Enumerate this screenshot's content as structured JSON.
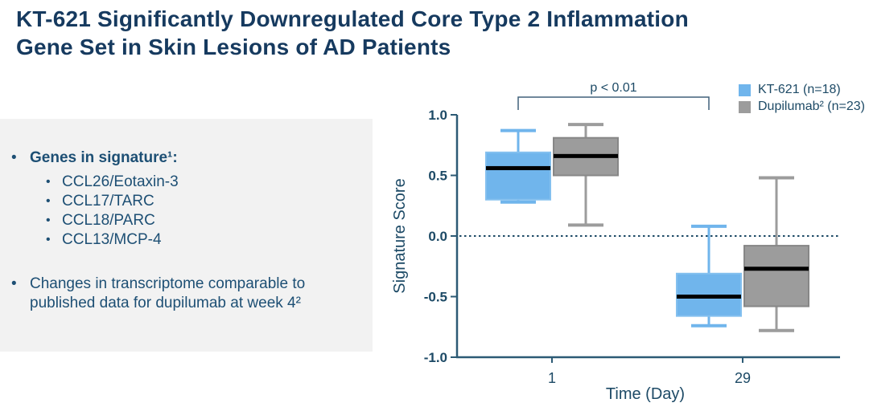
{
  "slide": {
    "title_line1": "KT-621 Significantly Downregulated Core Type 2 Inflammation",
    "title_line2": "Gene Set in Skin Lesions of AD Patients"
  },
  "panel": {
    "bullet1": "Genes in signature¹:",
    "genes": [
      "CCL26/Eotaxin-3",
      "CCL17/TARC",
      "CCL18/PARC",
      "CCL13/MCP-4"
    ],
    "bullet2": "Changes in transcriptome comparable to published data for dupilumab at week 4²"
  },
  "chart_data": {
    "type": "boxplot",
    "title": "",
    "xlabel": "Time (Day)",
    "ylabel": "Signature Score",
    "ylim": [
      -1.0,
      1.0
    ],
    "ytick_labels": [
      "1.0",
      "0.5",
      "0.0",
      "-0.5",
      "-1.0"
    ],
    "categories": [
      "1",
      "29"
    ],
    "grid": false,
    "zero_reference_line": 0.0,
    "annotation": "p < 0.01",
    "legend_position": "top-right",
    "legend": [
      {
        "label": "KT-621 (n=18)",
        "color": "#70b5ec"
      },
      {
        "label": "Dupilumab² (n=23)",
        "color": "#9c9c9c"
      }
    ],
    "series": [
      {
        "name": "KT-621",
        "n": 18,
        "fill": "#70b5ec",
        "border": "#84c0ef",
        "boxes": [
          {
            "category": "1",
            "whisker_low": 0.28,
            "q1": 0.3,
            "median": 0.56,
            "q3": 0.69,
            "whisker_high": 0.87
          },
          {
            "category": "29",
            "whisker_low": -0.74,
            "q1": -0.66,
            "median": -0.5,
            "q3": -0.31,
            "whisker_high": 0.08
          }
        ]
      },
      {
        "name": "Dupilumab",
        "n": 23,
        "fill": "#9c9c9c",
        "border": "#878787",
        "boxes": [
          {
            "category": "1",
            "whisker_low": 0.09,
            "q1": 0.5,
            "median": 0.66,
            "q3": 0.81,
            "whisker_high": 0.92
          },
          {
            "category": "29",
            "whisker_low": -0.78,
            "q1": -0.58,
            "median": -0.27,
            "q3": -0.08,
            "whisker_high": 0.48
          }
        ]
      }
    ]
  }
}
